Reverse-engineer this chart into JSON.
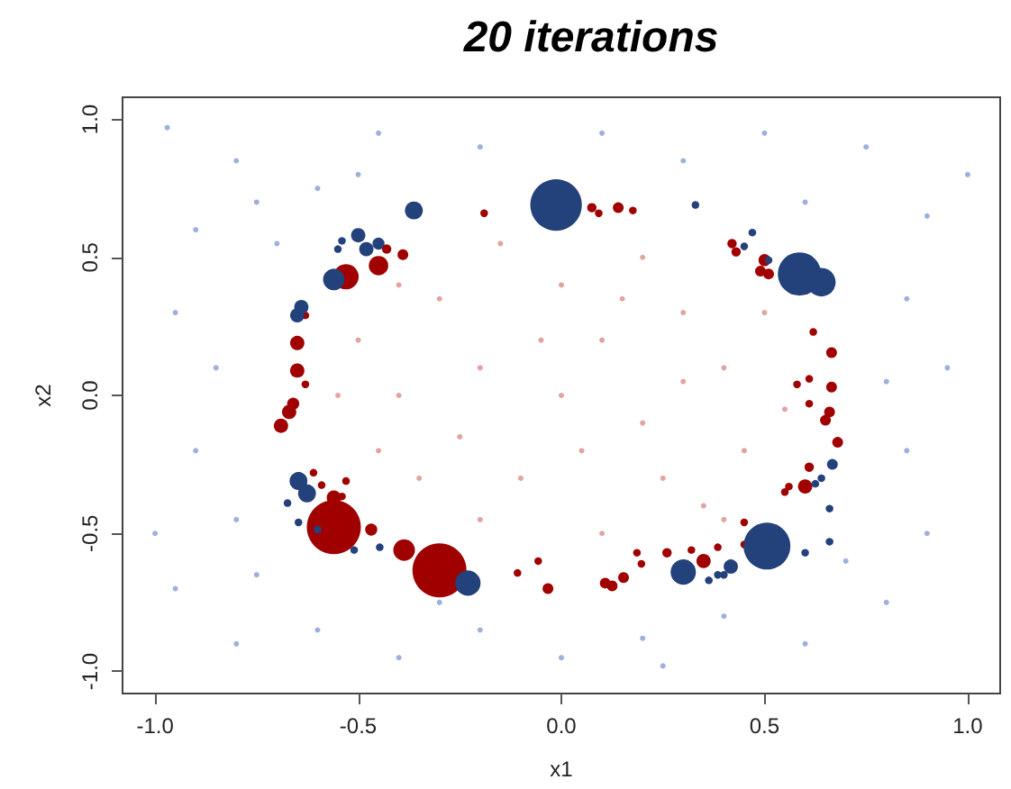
{
  "chart_data": {
    "type": "bubble",
    "title": "20 iterations",
    "xlabel": "x1",
    "ylabel": "x2",
    "xlim": [
      -1.08,
      1.08
    ],
    "ylim": [
      -1.08,
      1.08
    ],
    "xticks": [
      {
        "value": -1,
        "label": "-1.0"
      },
      {
        "value": -0.5,
        "label": "-0.5"
      },
      {
        "value": 0,
        "label": "0.0"
      },
      {
        "value": 0.5,
        "label": "0.5"
      },
      {
        "value": 1,
        "label": "1.0"
      }
    ],
    "yticks": [
      {
        "value": -1,
        "label": "-1.0"
      },
      {
        "value": -0.5,
        "label": "-0.5"
      },
      {
        "value": 0,
        "label": "0.0"
      },
      {
        "value": 0.5,
        "label": "0.5"
      },
      {
        "value": 1,
        "label": "1.0"
      }
    ],
    "grid": false,
    "series": [
      {
        "type": "scatter",
        "color": "#9fb0dc",
        "x": [
          -0.97,
          -0.8,
          -0.9,
          -0.95,
          -0.85,
          -0.9,
          -0.8,
          -0.95,
          -0.8,
          -0.6,
          -0.4,
          -0.2,
          0,
          0.2,
          0.4,
          0.6,
          0.8,
          0.9,
          0.85,
          0.95,
          0.85,
          0.9,
          0.75,
          0.5,
          0.3,
          0.1,
          -0.2,
          -0.45,
          -0.6,
          -0.7,
          -1.0,
          0.7,
          1.0,
          -0.5,
          0.6,
          -0.3,
          0.25,
          -0.75,
          0.8,
          -0.75
        ],
        "values": [
          0.97,
          0.85,
          0.6,
          0.3,
          0.1,
          -0.2,
          -0.45,
          -0.7,
          -0.9,
          -0.85,
          -0.95,
          -0.85,
          -0.95,
          -0.88,
          -0.8,
          -0.9,
          -0.75,
          -0.5,
          -0.2,
          0.1,
          0.35,
          0.65,
          0.9,
          0.95,
          0.85,
          0.95,
          0.9,
          0.95,
          0.75,
          0.55,
          -0.5,
          -0.6,
          0.8,
          0.8,
          0.7,
          -0.75,
          -0.98,
          -0.65,
          0.05,
          0.7
        ]
      },
      {
        "type": "scatter",
        "color": "#e3a3a3",
        "x": [
          -0.5,
          -0.4,
          -0.45,
          -0.3,
          -0.2,
          -0.1,
          0,
          0.1,
          0.2,
          0.3,
          0.4,
          0.45,
          0.35,
          0.1,
          -0.2,
          -0.35,
          0.5,
          -0.55,
          0.55,
          0.2,
          -0.15,
          0.0,
          -0.25,
          0.25,
          0.05,
          0.15,
          -0.4,
          0.4,
          -0.05,
          0.3
        ],
        "values": [
          0.2,
          0.0,
          -0.2,
          0.35,
          0.1,
          -0.3,
          0.4,
          0.2,
          -0.1,
          0.3,
          0.1,
          -0.2,
          -0.4,
          -0.5,
          -0.45,
          -0.3,
          0.3,
          0.0,
          -0.05,
          0.5,
          0.55,
          0.0,
          -0.15,
          -0.3,
          -0.2,
          0.35,
          0.4,
          -0.45,
          0.2,
          0.05
        ]
      },
      {
        "color": "#a00000",
        "x": [
          -0.19,
          -0.43,
          -0.45,
          -0.39,
          -0.53,
          -0.63,
          -0.65,
          -0.65,
          -0.63,
          -0.66,
          -0.67,
          -0.69,
          0.075,
          0.092,
          0.14,
          0.176,
          0.42,
          0.43,
          0.5,
          0.49,
          0.51,
          0.62,
          0.665,
          0.61,
          0.58,
          0.665,
          0.61,
          0.66,
          0.65,
          0.68,
          0.61,
          0.6,
          0.56,
          0.55,
          0.45,
          0.45,
          0.385,
          0.35,
          0.32,
          0.26,
          0.186,
          0.197,
          0.153,
          0.125,
          0.108,
          -0.057,
          -0.033,
          -0.61,
          -0.59,
          -0.53,
          -0.56,
          -0.54,
          -0.56,
          -0.468,
          -0.387,
          -0.3,
          -0.108
        ],
        "values": [
          0.66,
          0.53,
          0.47,
          0.51,
          0.43,
          0.29,
          0.19,
          0.09,
          0.04,
          -0.03,
          -0.06,
          -0.11,
          0.68,
          0.66,
          0.68,
          0.67,
          0.55,
          0.52,
          0.49,
          0.45,
          0.44,
          0.23,
          0.155,
          0.06,
          0.04,
          0.03,
          -0.03,
          -0.06,
          -0.09,
          -0.17,
          -0.26,
          -0.33,
          -0.33,
          -0.35,
          -0.46,
          -0.54,
          -0.55,
          -0.6,
          -0.56,
          -0.57,
          -0.57,
          -0.61,
          -0.66,
          -0.69,
          -0.68,
          -0.6,
          -0.7,
          -0.28,
          -0.325,
          -0.31,
          -0.37,
          -0.366,
          -0.477,
          -0.486,
          -0.56,
          -0.634,
          -0.643
        ],
        "sizes": [
          0.02,
          0.03,
          0.13,
          0.04,
          0.22,
          0.02,
          0.07,
          0.07,
          0.02,
          0.05,
          0.07,
          0.07,
          0.03,
          0.02,
          0.04,
          0.02,
          0.03,
          0.03,
          0.05,
          0.04,
          0.04,
          0.02,
          0.04,
          0.02,
          0.02,
          0.04,
          0.02,
          0.04,
          0.04,
          0.04,
          0.03,
          0.07,
          0.02,
          0.02,
          0.02,
          0.02,
          0.02,
          0.07,
          0.02,
          0.03,
          0.02,
          0.02,
          0.04,
          0.04,
          0.04,
          0.02,
          0.04,
          0.02,
          0.02,
          0.02,
          0.07,
          0.02,
          1,
          0.05,
          0.16,
          1,
          0.02
        ]
      },
      {
        "color": "#23417a",
        "x": [
          -0.013,
          -0.363,
          -0.5,
          -0.54,
          -0.55,
          -0.48,
          -0.45,
          -0.56,
          -0.64,
          -0.65,
          0.33,
          0.47,
          0.45,
          0.51,
          0.586,
          0.64,
          0.667,
          0.64,
          0.625,
          0.66,
          0.66,
          0.6,
          0.506,
          0.417,
          0.4,
          0.385,
          0.363,
          0.3,
          -0.647,
          -0.626,
          -0.674,
          -0.647,
          -0.6,
          -0.51,
          -0.447,
          -0.23
        ],
        "values": [
          0.69,
          0.67,
          0.58,
          0.56,
          0.53,
          0.53,
          0.55,
          0.42,
          0.32,
          0.29,
          0.69,
          0.59,
          0.54,
          0.49,
          0.44,
          0.41,
          -0.25,
          -0.3,
          -0.32,
          -0.41,
          -0.53,
          -0.57,
          -0.546,
          -0.62,
          -0.65,
          -0.65,
          -0.67,
          -0.64,
          -0.31,
          -0.355,
          -0.39,
          -0.46,
          -0.486,
          -0.56,
          -0.55,
          -0.68
        ],
        "sizes": [
          0.91,
          0.11,
          0.07,
          0.02,
          0.02,
          0.07,
          0.05,
          0.16,
          0.07,
          0.07,
          0.02,
          0.02,
          0.02,
          0.02,
          0.64,
          0.28,
          0.04,
          0.02,
          0.02,
          0.02,
          0.02,
          0.02,
          0.75,
          0.07,
          0.02,
          0.02,
          0.02,
          0.22,
          0.11,
          0.11,
          0.02,
          0.02,
          0.02,
          0.02,
          0.02,
          0.22
        ]
      }
    ]
  }
}
